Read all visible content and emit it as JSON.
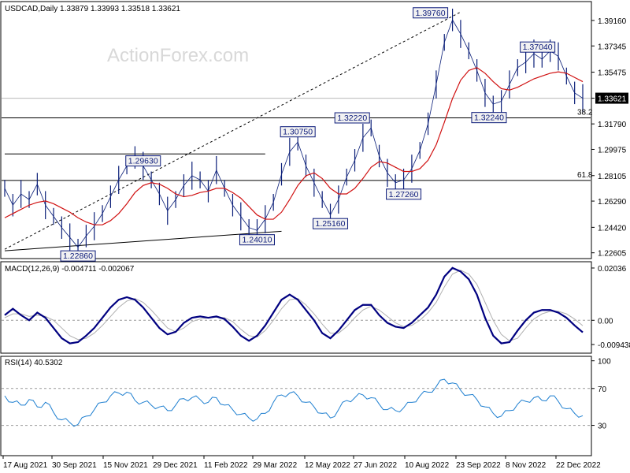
{
  "header": {
    "title": "USDCAD,Daily",
    "ohlc": "1.33879 1.33993 1.33518 1.33621"
  },
  "watermark": "ActionForex.com",
  "colors": {
    "price": "#0a1e78",
    "ma": "#d01010",
    "macd": "#000080",
    "signal": "#b0b0b0",
    "rsi": "#1e7fd0",
    "label_bg": "#f2f2f2"
  },
  "chart_data": [
    {
      "type": "line",
      "panel": "price",
      "title": "USDCAD,Daily",
      "yticks": [
        "1.39160",
        "1.37345",
        "1.35475",
        "1.33621",
        "1.31790",
        "1.29975",
        "1.28105",
        "1.26290",
        "1.24420",
        "1.22605"
      ],
      "ylim": [
        1.2225,
        1.4045
      ],
      "current_price": 1.33621,
      "fib_labels": {
        "level_38_2": "38.2",
        "level_61_8": "61.8"
      },
      "horizontal_levels": [
        1.3222,
        1.2776
      ],
      "annotations": [
        {
          "text": "1.39760",
          "date_index": 55,
          "value": 1.3976
        },
        {
          "text": "1.37040",
          "date_index": 67,
          "value": 1.3704
        },
        {
          "text": "1.32240",
          "date_index": 62,
          "value": 1.3224
        },
        {
          "text": "1.32220",
          "date_index": 45,
          "value": 1.3222
        },
        {
          "text": "1.30750",
          "date_index": 36,
          "value": 1.3075
        },
        {
          "text": "1.29630",
          "date_index": 17,
          "value": 1.2963
        },
        {
          "text": "1.27260",
          "date_index": 49,
          "value": 1.2726
        },
        {
          "text": "1.25160",
          "date_index": 40,
          "value": 1.2516
        },
        {
          "text": "1.24010",
          "date_index": 31,
          "value": 1.2401
        },
        {
          "text": "1.22860",
          "date_index": 9,
          "value": 1.2286
        }
      ],
      "trendlines": [
        {
          "from": [
            0,
            1.2965
          ],
          "to": [
            32,
            1.2965
          ]
        },
        {
          "from": [
            0,
            1.2275
          ],
          "to": [
            34,
            1.2414
          ]
        },
        {
          "from": [
            0,
            1.2286
          ],
          "to": [
            56,
            1.3976
          ]
        }
      ],
      "series": [
        {
          "values": [
            1.272,
            1.26,
            1.268,
            1.264,
            1.275,
            1.26,
            1.252,
            1.244,
            1.237,
            1.23,
            1.238,
            1.245,
            1.254,
            1.266,
            1.278,
            1.288,
            1.294,
            1.288,
            1.278,
            1.268,
            1.256,
            1.264,
            1.274,
            1.281,
            1.278,
            1.27,
            1.285,
            1.272,
            1.26,
            1.252,
            1.244,
            1.242,
            1.25,
            1.262,
            1.282,
            1.298,
            1.305,
            1.288,
            1.276,
            1.264,
            1.253,
            1.264,
            1.28,
            1.292,
            1.308,
            1.315,
            1.295,
            1.283,
            1.276,
            1.278,
            1.286,
            1.299,
            1.318,
            1.346,
            1.376,
            1.392,
            1.382,
            1.37,
            1.356,
            1.34,
            1.332,
            1.334,
            1.346,
            1.358,
            1.362,
            1.368,
            1.364,
            1.37,
            1.366,
            1.352,
            1.34,
            1.3362
          ]
        },
        {
          "values": [
            1.251,
            1.254,
            1.257,
            1.26,
            1.262,
            1.263,
            1.261,
            1.258,
            1.255,
            1.251,
            1.248,
            1.246,
            1.246,
            1.249,
            1.254,
            1.261,
            1.269,
            1.274,
            1.276,
            1.275,
            1.272,
            1.268,
            1.266,
            1.267,
            1.269,
            1.27,
            1.272,
            1.272,
            1.269,
            1.265,
            1.259,
            1.253,
            1.25,
            1.25,
            1.255,
            1.264,
            1.274,
            1.281,
            1.283,
            1.279,
            1.272,
            1.268,
            1.268,
            1.272,
            1.279,
            1.287,
            1.291,
            1.29,
            1.287,
            1.284,
            1.284,
            1.286,
            1.292,
            1.303,
            1.319,
            1.336,
            1.349,
            1.356,
            1.358,
            1.354,
            1.348,
            1.343,
            1.342,
            1.344,
            1.347,
            1.35,
            1.352,
            1.354,
            1.355,
            1.354,
            1.351,
            1.348
          ]
        }
      ],
      "series_names": [
        "price",
        "moving average"
      ]
    },
    {
      "type": "line",
      "panel": "macd",
      "title": "MACD(12,26,9) -0.004711 -0.002067",
      "yticks": [
        "0.02036",
        "0.00",
        "-0.009438"
      ],
      "ylim": [
        -0.0125,
        0.0225
      ],
      "series": [
        {
          "values": [
            0.002,
            0.0045,
            0.002,
            0.0,
            0.003,
            0.001,
            -0.003,
            -0.007,
            -0.009,
            -0.0085,
            -0.006,
            -0.003,
            0.001,
            0.005,
            0.008,
            0.009,
            0.008,
            0.005,
            0.001,
            -0.003,
            -0.0055,
            -0.0045,
            -0.001,
            0.001,
            0.0015,
            0.001,
            0.0015,
            0.0005,
            -0.0025,
            -0.006,
            -0.008,
            -0.006,
            -0.002,
            0.003,
            0.008,
            0.01,
            0.008,
            0.004,
            0.0,
            -0.005,
            -0.007,
            -0.004,
            0.0,
            0.004,
            0.006,
            0.006,
            0.002,
            -0.001,
            -0.0025,
            -0.003,
            -0.001,
            0.002,
            0.005,
            0.01,
            0.017,
            0.0204,
            0.019,
            0.016,
            0.01,
            0.001,
            -0.006,
            -0.009,
            -0.0085,
            -0.004,
            0.0,
            0.003,
            0.004,
            0.004,
            0.003,
            0.001,
            -0.002,
            -0.0047
          ]
        },
        {
          "values": [
            0.001,
            0.0025,
            0.0025,
            0.0015,
            0.002,
            0.0015,
            0.0,
            -0.003,
            -0.006,
            -0.0075,
            -0.007,
            -0.005,
            -0.002,
            0.0015,
            0.005,
            0.0075,
            0.0085,
            0.007,
            0.004,
            0.0005,
            -0.003,
            -0.0045,
            -0.003,
            -0.0005,
            0.0005,
            0.001,
            0.0012,
            0.001,
            -0.0005,
            -0.0035,
            -0.006,
            -0.0065,
            -0.004,
            0.0,
            0.0045,
            0.008,
            0.0085,
            0.006,
            0.0025,
            -0.0015,
            -0.005,
            -0.005,
            -0.0025,
            0.001,
            0.004,
            0.0055,
            0.004,
            0.0015,
            -0.001,
            -0.0025,
            -0.002,
            0.0,
            0.003,
            0.007,
            0.013,
            0.018,
            0.0195,
            0.018,
            0.014,
            0.007,
            0.0,
            -0.0055,
            -0.008,
            -0.007,
            -0.003,
            0.0005,
            0.0025,
            0.0035,
            0.0035,
            0.0025,
            0.0005,
            -0.0021
          ]
        }
      ],
      "series_names": [
        "MACD",
        "signal"
      ]
    },
    {
      "type": "line",
      "panel": "rsi",
      "title": "RSI(14) 40.5302",
      "yticks": [
        "100",
        "70",
        "30"
      ],
      "ylim": [
        0,
        100
      ],
      "guide_levels": [
        70,
        30
      ],
      "series": [
        {
          "values": [
            62,
            55,
            52,
            58,
            50,
            55,
            44,
            36,
            33,
            31,
            40,
            47,
            55,
            62,
            65,
            66,
            57,
            55,
            52,
            50,
            46,
            52,
            59,
            60,
            58,
            55,
            60,
            52,
            47,
            42,
            38,
            37,
            43,
            55,
            63,
            65,
            62,
            55,
            50,
            43,
            38,
            47,
            57,
            60,
            63,
            60,
            53,
            47,
            46,
            49,
            55,
            62,
            66,
            72,
            80,
            76,
            68,
            63,
            58,
            50,
            43,
            40,
            46,
            53,
            56,
            60,
            57,
            62,
            56,
            48,
            43,
            40.5
          ]
        }
      ],
      "series_names": [
        "RSI"
      ]
    }
  ],
  "dates": [
    "17 Aug 2021",
    "30 Sep 2021",
    "15 Nov 2021",
    "29 Dec 2021",
    "11 Feb 2022",
    "29 Mar 2022",
    "12 May 2022",
    "27 Jun 2022",
    "10 Aug 2022",
    "23 Sep 2022",
    "8 Nov 2022",
    "22 Dec 2022"
  ]
}
